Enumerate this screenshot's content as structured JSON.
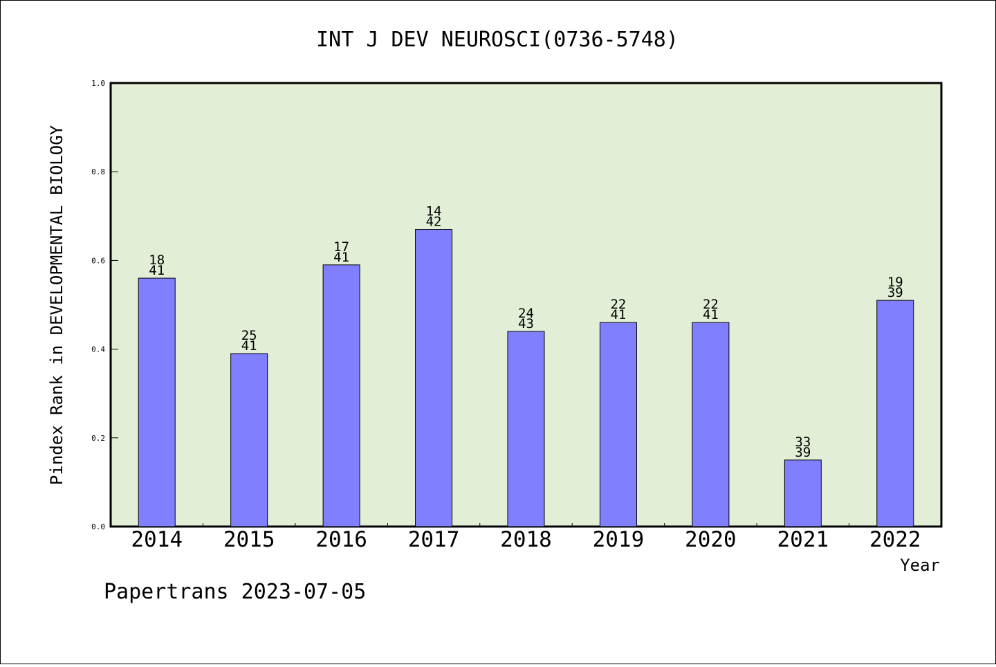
{
  "chart_data": {
    "type": "bar",
    "title": "INT J DEV NEUROSCI(0736-5748)",
    "ylabel": "Pindex Rank in DEVELOPMENTAL BIOLOGY",
    "xlabel": "Year",
    "ylim": [
      0,
      1.0
    ],
    "yticks": [
      "0.0",
      "0.2",
      "0.4",
      "0.6",
      "0.8",
      "1.0"
    ],
    "grid": false,
    "categories": [
      "2014",
      "2015",
      "2016",
      "2017",
      "2018",
      "2019",
      "2020",
      "2021",
      "2022"
    ],
    "values": [
      0.56,
      0.39,
      0.59,
      0.67,
      0.44,
      0.46,
      0.46,
      0.15,
      0.51
    ],
    "bar_labels": [
      {
        "rank": "18",
        "total": "41"
      },
      {
        "rank": "25",
        "total": "41"
      },
      {
        "rank": "17",
        "total": "41"
      },
      {
        "rank": "14",
        "total": "42"
      },
      {
        "rank": "24",
        "total": "43"
      },
      {
        "rank": "22",
        "total": "41"
      },
      {
        "rank": "22",
        "total": "41"
      },
      {
        "rank": "33",
        "total": "39"
      },
      {
        "rank": "19",
        "total": "39"
      }
    ],
    "colors": {
      "bar": "#8080ff",
      "plot_background": "#e2efd6",
      "axis": "#000000"
    }
  },
  "footer": "Papertrans 2023-07-05"
}
